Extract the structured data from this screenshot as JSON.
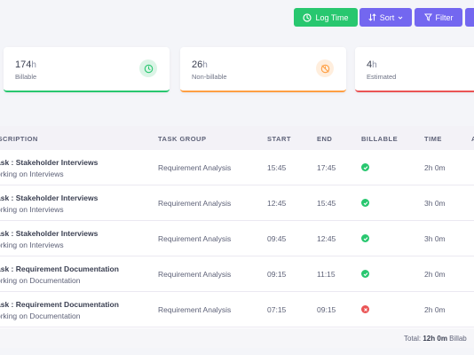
{
  "toolbar": {
    "log_time": "Log Time",
    "sort": "Sort",
    "filter": "Filter"
  },
  "colors": {
    "green": "#28c76f",
    "purple": "#7367f0",
    "orange": "#ff9f43",
    "red": "#ea5455"
  },
  "stats": [
    {
      "value": "174",
      "unit": "h",
      "label": "Billable",
      "icon": "clock-check-icon"
    },
    {
      "value": "26",
      "unit": "h",
      "label": "Non-billable",
      "icon": "clock-off-icon"
    },
    {
      "value": "4",
      "unit": "h",
      "label": "Estimated"
    }
  ],
  "table": {
    "columns": [
      "ESCRIPTION",
      "TASK GROUP",
      "START",
      "END",
      "BILLABLE",
      "TIME",
      "A"
    ],
    "rows": [
      {
        "title": "ask : Stakeholder Interviews",
        "subtitle": "orking on Interviews",
        "group": "Requirement Analysis",
        "start": "15:45",
        "end": "17:45",
        "billable": true,
        "time": "2h 0m"
      },
      {
        "title": "ask : Stakeholder Interviews",
        "subtitle": "orking on Interviews",
        "group": "Requirement Analysis",
        "start": "12:45",
        "end": "15:45",
        "billable": true,
        "time": "3h 0m"
      },
      {
        "title": "ask : Stakeholder Interviews",
        "subtitle": "orking on Interviews",
        "group": "Requirement Analysis",
        "start": "09:45",
        "end": "12:45",
        "billable": true,
        "time": "3h 0m"
      },
      {
        "title": "ask : Requirement Documentation",
        "subtitle": "orking on Documentation",
        "group": "Requirement Analysis",
        "start": "09:15",
        "end": "11:15",
        "billable": true,
        "time": "2h 0m"
      },
      {
        "title": "ask : Requirement Documentation",
        "subtitle": "orking on Documentation",
        "group": "Requirement Analysis",
        "start": "07:15",
        "end": "09:15",
        "billable": false,
        "time": "2h 0m"
      }
    ]
  },
  "footer": {
    "total_label": "Total:",
    "total_value": "12h 0m",
    "billable_label": "Billab"
  }
}
